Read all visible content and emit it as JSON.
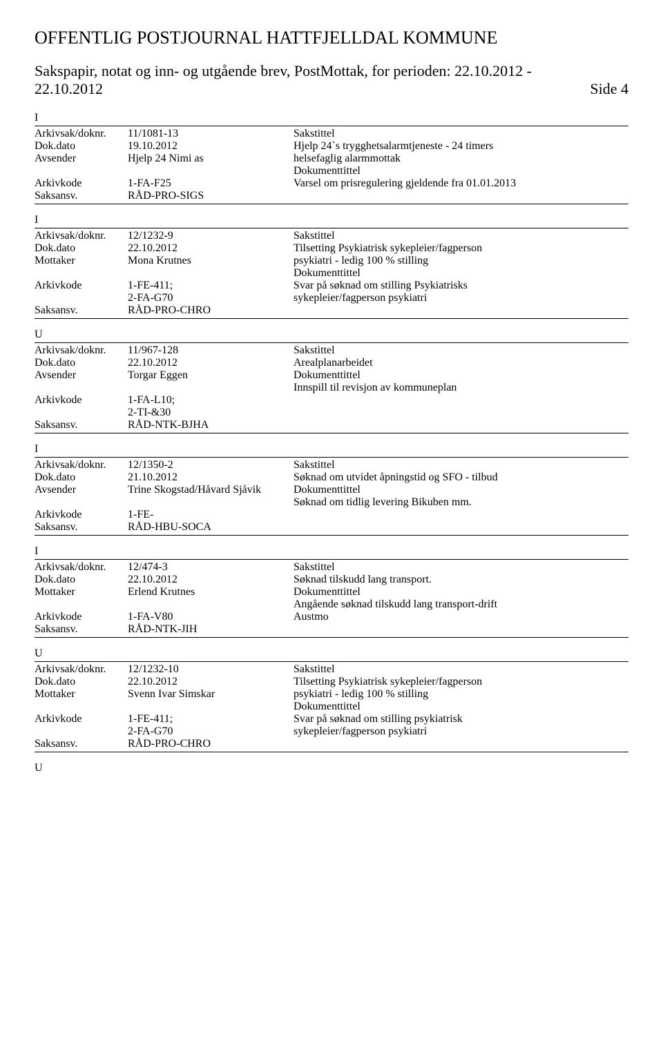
{
  "header": {
    "title": "OFFENTLIG POSTJOURNAL HATTFJELLDAL KOMMUNE",
    "subtitle": "Sakspapir, notat og inn- og utgående brev, PostMottak, for perioden: 22.10.2012 - 22.10.2012",
    "page_label": "Side 4"
  },
  "labels": {
    "arkivsak": "Arkivsak/doknr.",
    "dokdato": "Dok.dato",
    "avsender": "Avsender",
    "mottaker": "Mottaker",
    "arkivkode": "Arkivkode",
    "saksansv": "Saksansv.",
    "sakstittel": "Sakstittel",
    "dokumenttittel": "Dokumenttittel"
  },
  "entries": [
    {
      "type": "I",
      "arkivsak": "11/1081-13",
      "dokdato": "19.10.2012",
      "party_label": "Avsender",
      "party": "Hjelp 24 Nimi as",
      "arkivkode": [
        "1-FA-F25"
      ],
      "saksansv": "RÅD-PRO-SIGS",
      "sakstittel": [
        "Hjelp 24`s trygghetsalarmtjeneste - 24 timers",
        "helsefaglig alarmmottak"
      ],
      "dokumenttittel": [
        "Varsel om prisregulering gjeldende fra 01.01.2013"
      ]
    },
    {
      "type": "I",
      "arkivsak": "12/1232-9",
      "dokdato": "22.10.2012",
      "party_label": "Mottaker",
      "party": "Mona Krutnes",
      "arkivkode": [
        "1-FE-411;",
        "2-FA-G70"
      ],
      "saksansv": "RÅD-PRO-CHRO",
      "sakstittel": [
        "Tilsetting Psykiatrisk sykepleier/fagperson",
        "psykiatri - ledig 100 % stilling"
      ],
      "dokumenttittel": [
        "Svar på søknad om stilling Psykiatrisks",
        "sykepleier/fagperson psykiatri"
      ]
    },
    {
      "type": "U",
      "arkivsak": "11/967-128",
      "dokdato": "22.10.2012",
      "party_label": "Avsender",
      "party": "Torgar Eggen",
      "arkivkode": [
        "1-FA-L10;",
        "2-TI-&30"
      ],
      "saksansv": "RÅD-NTK-BJHA",
      "sakstittel": [
        "Arealplanarbeidet"
      ],
      "dokumenttittel": [
        "Innspill til revisjon av kommuneplan"
      ]
    },
    {
      "type": "I",
      "arkivsak": "12/1350-2",
      "dokdato": "21.10.2012",
      "party_label": "Avsender",
      "party": "Trine Skogstad/Håvard Sjåvik",
      "arkivkode": [
        "1-FE-"
      ],
      "saksansv": "RÅD-HBU-SOCA",
      "sakstittel": [
        "Søknad om utvidet åpningstid og SFO - tilbud"
      ],
      "dokumenttittel": [
        "Søknad om tidlig levering Bikuben mm."
      ]
    },
    {
      "type": "I",
      "arkivsak": "12/474-3",
      "dokdato": "22.10.2012",
      "party_label": "Mottaker",
      "party": "Erlend Krutnes",
      "arkivkode": [
        "1-FA-V80"
      ],
      "saksansv": "RÅD-NTK-JIH",
      "sakstittel": [
        "Søknad tilskudd lang transport."
      ],
      "dokumenttittel": [
        "Angående søknad tilskudd lang transport-drift",
        "Austmo"
      ]
    },
    {
      "type": "U",
      "arkivsak": "12/1232-10",
      "dokdato": "22.10.2012",
      "party_label": "Mottaker",
      "party": "Svenn Ivar Simskar",
      "arkivkode": [
        "1-FE-411;",
        "2-FA-G70"
      ],
      "saksansv": "RÅD-PRO-CHRO",
      "sakstittel": [
        "Tilsetting Psykiatrisk sykepleier/fagperson",
        "psykiatri - ledig 100 % stilling"
      ],
      "dokumenttittel": [
        "Svar på søknad om stilling psykiatrisk",
        "sykepleier/fagperson psykiatri"
      ]
    }
  ],
  "trailing_type": "U"
}
